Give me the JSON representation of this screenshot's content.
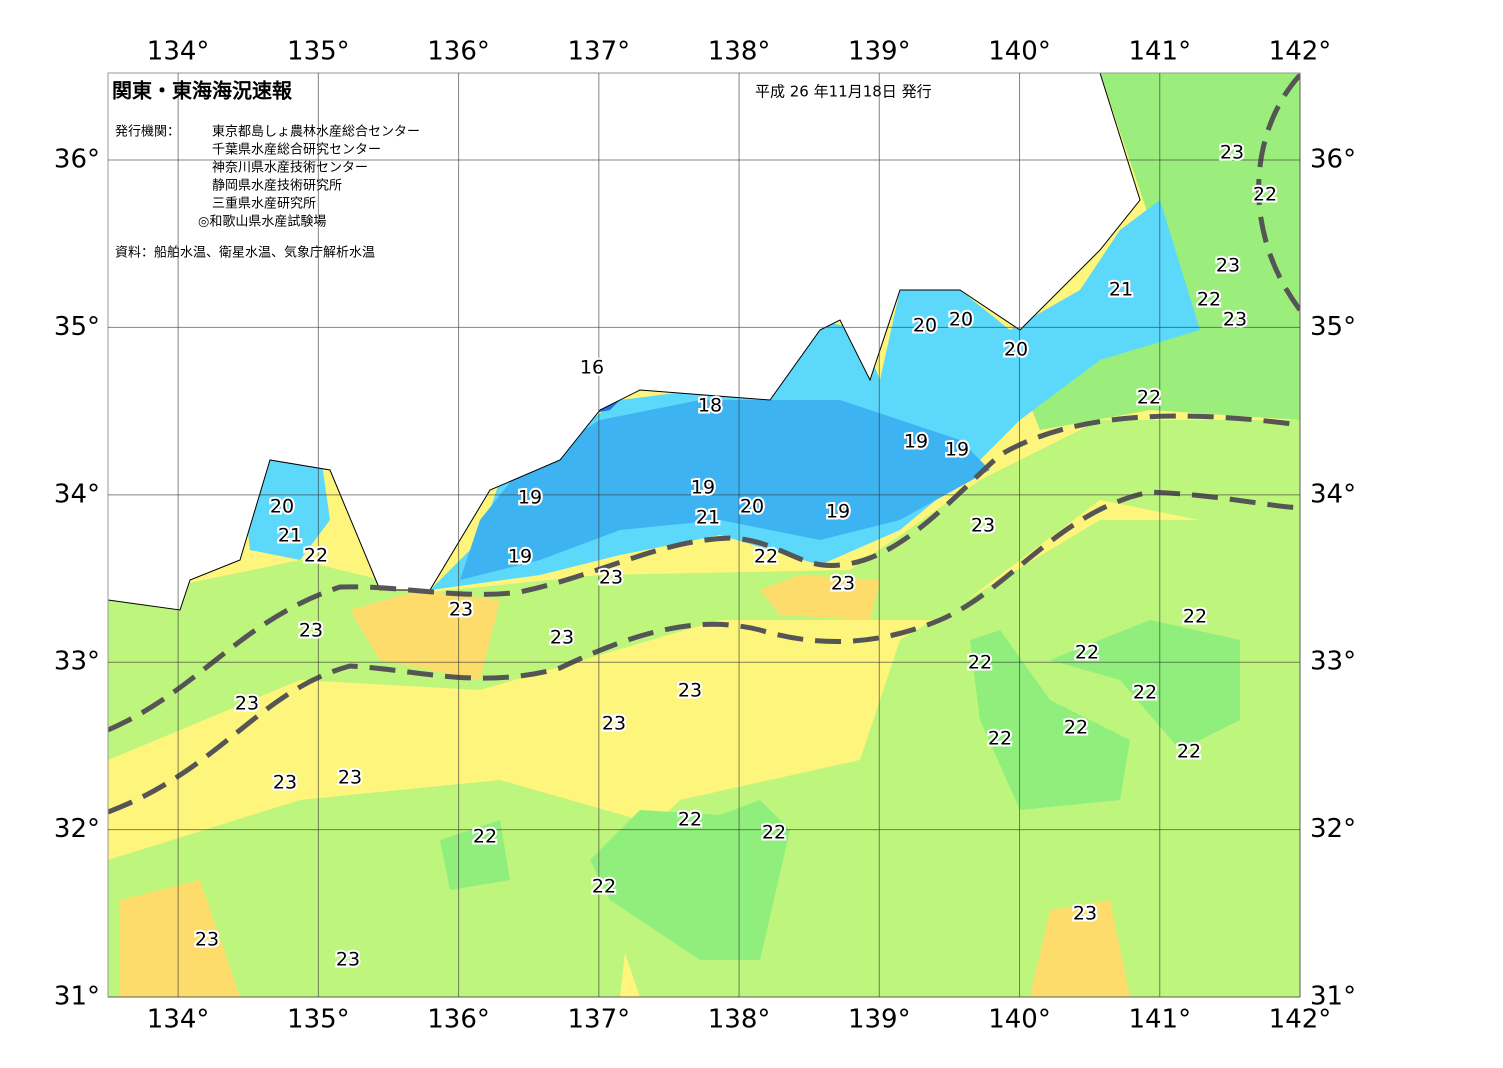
{
  "header": {
    "title": "関東・東海海況速報",
    "date": "平成 26 年11月18日 発行",
    "publisher_label": "発行機関：",
    "publishers": [
      "東京都島しょ農林水産総合センター",
      "千葉県水産総合研究センター",
      "神奈川県水産技術センター",
      "静岡県水産技術研究所",
      "三重県水産研究所",
      "◎和歌山県水産試験場"
    ],
    "source": "資料：船舶水温、衛星水温、気象庁解析水温"
  },
  "map": {
    "xlim": [
      133.5,
      142
    ],
    "ylim": [
      31,
      36.52
    ],
    "xticks": [
      {
        "value": 134,
        "label": "134°"
      },
      {
        "value": 135,
        "label": "135°"
      },
      {
        "value": 136,
        "label": "136°"
      },
      {
        "value": 137,
        "label": "137°"
      },
      {
        "value": 138,
        "label": "138°"
      },
      {
        "value": 139,
        "label": "139°"
      },
      {
        "value": 140,
        "label": "140°"
      },
      {
        "value": 141,
        "label": "141°"
      },
      {
        "value": 142,
        "label": "142°"
      }
    ],
    "yticks": [
      {
        "value": 31,
        "label": "31°"
      },
      {
        "value": 32,
        "label": "32°"
      },
      {
        "value": 33,
        "label": "33°"
      },
      {
        "value": 34,
        "label": "34°"
      },
      {
        "value": 35,
        "label": "35°"
      },
      {
        "value": 36,
        "label": "36°"
      }
    ],
    "grid": true,
    "contour_labels": [
      16,
      18,
      19,
      19,
      20,
      21,
      19,
      19,
      22,
      23,
      23,
      23,
      23,
      23,
      20,
      21,
      22,
      20,
      20,
      20,
      19,
      19,
      21,
      22,
      23,
      23,
      22,
      23,
      22,
      23,
      22,
      22,
      22,
      22,
      22,
      22,
      22,
      23,
      23,
      23,
      23,
      23,
      22,
      22,
      22,
      22,
      23,
      23,
      23
    ]
  }
}
